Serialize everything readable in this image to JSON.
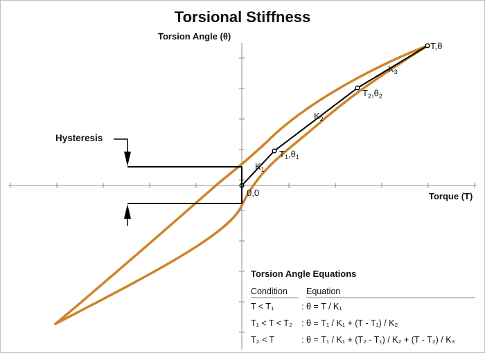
{
  "title": "Torsional Stiffness",
  "y_axis_label": "Torsion Angle (θ)",
  "x_axis_label": "Torque (T)",
  "hysteresis_label": "Hysteresis",
  "points": {
    "origin": "0,0",
    "p1": {
      "base": "T",
      "sub": "1",
      "sep": ",",
      "base2": "θ",
      "sub2": "1"
    },
    "p2": {
      "base": "T",
      "sub": "2",
      "sep": ",",
      "base2": "θ",
      "sub2": "2"
    },
    "end": "T,θ"
  },
  "stiffness": {
    "k1": {
      "base": "K",
      "sub": "1"
    },
    "k2": {
      "base": "K",
      "sub": "2"
    },
    "k3": {
      "base": "K",
      "sub": "3"
    }
  },
  "equations": {
    "title": "Torsion Angle Equations",
    "col_condition": "Condition",
    "col_equation": "Equation",
    "separator": ":",
    "rows": [
      {
        "condition": "T < T₁",
        "equation": "θ = T / K₁"
      },
      {
        "condition": "T₁ < T < T₂",
        "equation": "θ = T₁ / K₁ + (T - T₁) / K₂"
      },
      {
        "condition": "T₂ < T",
        "equation": "θ = T₁ / K₁ + (T₂ - T₁) / K₂ + (T - T₂) / K₃"
      }
    ]
  },
  "colors": {
    "curve": "#d0832a",
    "line": "#000000",
    "axis": "#8c8c8c"
  }
}
